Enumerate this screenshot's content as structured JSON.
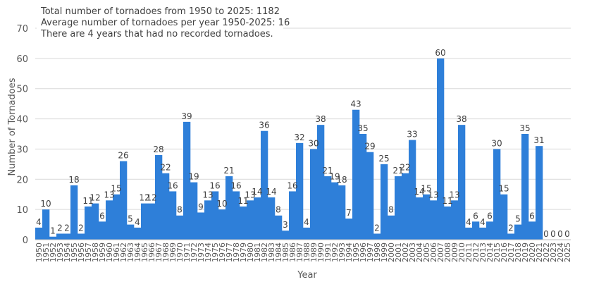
{
  "chart_data": {
    "type": "bar",
    "title": "",
    "xlabel": "Year",
    "ylabel": "Number of Tornadoes",
    "ylim": [
      0,
      70
    ],
    "yticks": [
      0,
      10,
      20,
      30,
      40,
      50,
      60,
      70
    ],
    "grid": true,
    "bar_color": "#2e7fd9",
    "annotations": [
      "Total number of tornadoes from 1950 to 2025: 1182",
      "Average number of tornadoes per year 1950-2025: 16",
      "There are 4 years that had no recorded tornadoes."
    ],
    "categories": [
      "1950",
      "1951",
      "1952",
      "1953",
      "1954",
      "1955",
      "1956",
      "1957",
      "1958",
      "1959",
      "1960",
      "1961",
      "1962",
      "1963",
      "1964",
      "1965",
      "1966",
      "1967",
      "1968",
      "1969",
      "1970",
      "1971",
      "1972",
      "1973",
      "1974",
      "1975",
      "1976",
      "1977",
      "1978",
      "1979",
      "1980",
      "1981",
      "1982",
      "1983",
      "1984",
      "1985",
      "1986",
      "1987",
      "1988",
      "1989",
      "1990",
      "1991",
      "1992",
      "1993",
      "1994",
      "1995",
      "1996",
      "1997",
      "1998",
      "1999",
      "2000",
      "2001",
      "2002",
      "2003",
      "2004",
      "2005",
      "2006",
      "2007",
      "2008",
      "2009",
      "2010",
      "2011",
      "2012",
      "2013",
      "2014",
      "2015",
      "2016",
      "2017",
      "2018",
      "2019",
      "2020",
      "2021",
      "2022",
      "2023",
      "2024",
      "2025"
    ],
    "values": [
      4,
      10,
      1,
      2,
      2,
      18,
      2,
      11,
      12,
      6,
      13,
      15,
      26,
      5,
      4,
      12,
      12,
      28,
      22,
      16,
      8,
      39,
      19,
      9,
      13,
      16,
      10,
      21,
      16,
      11,
      13,
      14,
      36,
      14,
      8,
      3,
      16,
      32,
      4,
      30,
      38,
      21,
      19,
      18,
      7,
      43,
      35,
      29,
      2,
      25,
      8,
      21,
      22,
      33,
      14,
      15,
      13,
      60,
      11,
      13,
      38,
      4,
      6,
      4,
      6,
      30,
      15,
      2,
      5,
      35,
      6,
      31,
      0,
      0,
      0,
      0
    ]
  }
}
